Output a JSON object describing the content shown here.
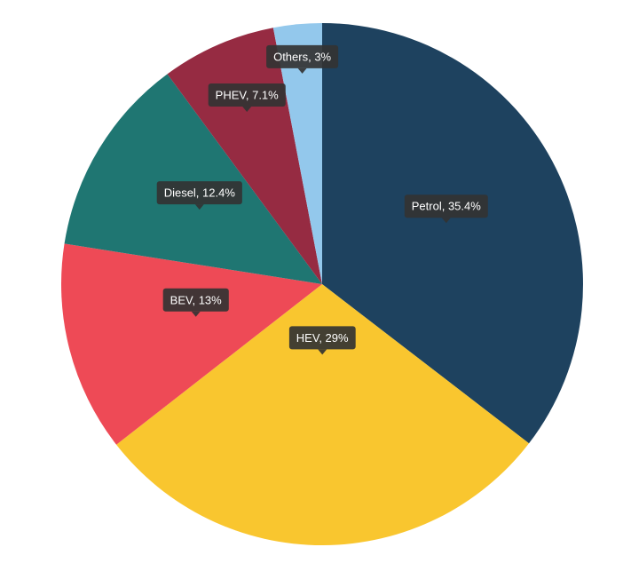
{
  "chart_data": {
    "type": "pie",
    "start_angle_deg": 0,
    "direction": "clockwise",
    "legend": "none",
    "slices": [
      {
        "label": "Petrol",
        "value": 35.4,
        "display": "Petrol, 35.4%",
        "color": "#1e425f"
      },
      {
        "label": "HEV",
        "value": 29,
        "display": "HEV, 29%",
        "color": "#f9c62f"
      },
      {
        "label": "BEV",
        "value": 13,
        "display": "BEV, 13%",
        "color": "#ee4a56"
      },
      {
        "label": "Diesel",
        "value": 12.4,
        "display": "Diesel, 12.4%",
        "color": "#1f7672"
      },
      {
        "label": "PHEV",
        "value": 7.1,
        "display": "PHEV, 7.1%",
        "color": "#962b42"
      },
      {
        "label": "Others",
        "value": 3,
        "display": "Others, 3%",
        "color": "#93c8ec"
      }
    ]
  }
}
